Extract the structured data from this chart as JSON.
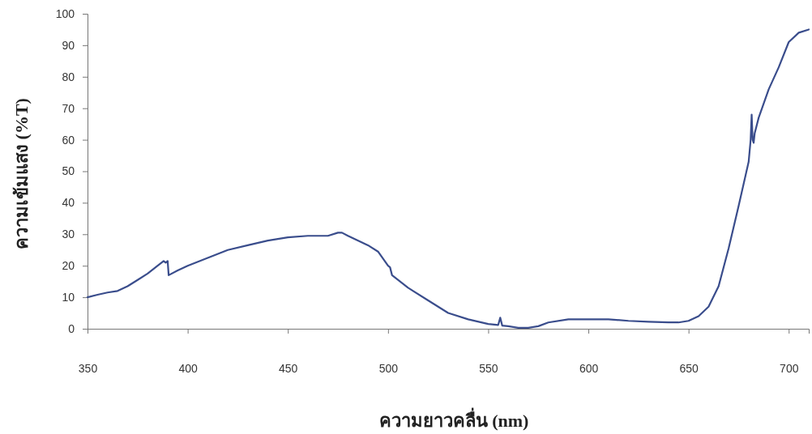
{
  "chart_data": {
    "type": "line",
    "xlabel": "ความยาวคลื่น (nm)",
    "ylabel": "ความเข้มแสง (%T)",
    "xlim": [
      350,
      710
    ],
    "xticks": [
      350,
      400,
      450,
      500,
      550,
      600,
      650,
      700
    ],
    "ylim": [
      0,
      100
    ],
    "yticks": [
      0,
      10,
      20,
      30,
      40,
      50,
      60,
      70,
      80,
      90,
      100
    ],
    "grid": false,
    "marker": "none",
    "line_style": "solid",
    "series": [
      {
        "color": "#3a4d8c",
        "x": [
          350,
          355,
          360,
          365,
          370,
          375,
          380,
          385,
          388,
          389,
          390,
          390.5,
          395,
          400,
          410,
          420,
          430,
          440,
          450,
          460,
          470,
          475,
          477,
          480,
          490,
          495,
          500,
          501,
          502,
          510,
          520,
          530,
          540,
          550,
          555,
          556,
          557,
          560,
          565,
          570,
          575,
          580,
          590,
          600,
          610,
          620,
          630,
          640,
          645,
          650,
          655,
          660,
          665,
          670,
          675,
          680,
          681,
          681.5,
          682,
          682.5,
          683,
          685,
          690,
          695,
          700,
          705,
          710
        ],
        "values": [
          10,
          10.8,
          11.5,
          12,
          13.5,
          15.5,
          17.5,
          20,
          21.5,
          21,
          21.5,
          17,
          18.5,
          20,
          22.5,
          25,
          26.5,
          28,
          29,
          29.5,
          29.5,
          30.5,
          30.5,
          29.5,
          26.5,
          24.5,
          20,
          19.5,
          17,
          13,
          9,
          5,
          3,
          1.5,
          1.2,
          3.5,
          1,
          0.8,
          0.3,
          0.3,
          0.8,
          2,
          3,
          3,
          3,
          2.5,
          2.2,
          2,
          2,
          2.5,
          4,
          7,
          13.5,
          25.5,
          39,
          53,
          60,
          68,
          60,
          59,
          62,
          67,
          76,
          83,
          91,
          94,
          95
        ]
      }
    ]
  }
}
